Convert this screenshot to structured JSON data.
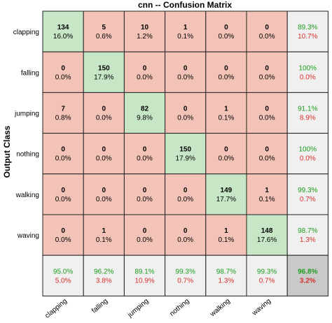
{
  "chart_data": {
    "type": "heatmap",
    "title": "cnn --  Confusion Matrix",
    "ylabel": "Output Class",
    "xlabel": "",
    "classes": [
      "clapping",
      "falling",
      "jumping",
      "nothing",
      "walking",
      "waving"
    ],
    "matrix": [
      [
        134,
        5,
        10,
        1,
        0,
        0
      ],
      [
        0,
        150,
        0,
        0,
        0,
        0
      ],
      [
        7,
        0,
        82,
        0,
        1,
        0
      ],
      [
        0,
        0,
        0,
        150,
        0,
        0
      ],
      [
        0,
        0,
        0,
        0,
        149,
        1
      ],
      [
        0,
        1,
        0,
        0,
        1,
        148
      ]
    ],
    "matrix_pct": [
      [
        "16.0%",
        "0.6%",
        "1.2%",
        "0.1%",
        "0.0%",
        "0.0%"
      ],
      [
        "0.0%",
        "17.9%",
        "0.0%",
        "0.0%",
        "0.0%",
        "0.0%"
      ],
      [
        "0.8%",
        "0.0%",
        "9.8%",
        "0.0%",
        "0.1%",
        "0.0%"
      ],
      [
        "0.0%",
        "0.0%",
        "0.0%",
        "17.9%",
        "0.0%",
        "0.0%"
      ],
      [
        "0.0%",
        "0.0%",
        "0.0%",
        "0.0%",
        "17.7%",
        "0.1%"
      ],
      [
        "0.0%",
        "0.1%",
        "0.0%",
        "0.0%",
        "0.1%",
        "17.6%"
      ]
    ],
    "row_summary": [
      {
        "correct": "89.3%",
        "error": "10.7%"
      },
      {
        "correct": "100%",
        "error": "0.0%"
      },
      {
        "correct": "91.1%",
        "error": "8.9%"
      },
      {
        "correct": "100%",
        "error": "0.0%"
      },
      {
        "correct": "99.3%",
        "error": "0.7%"
      },
      {
        "correct": "98.7%",
        "error": "1.3%"
      }
    ],
    "col_summary": [
      {
        "correct": "95.0%",
        "error": "5.0%"
      },
      {
        "correct": "96.2%",
        "error": "3.8%"
      },
      {
        "correct": "89.1%",
        "error": "10.9%"
      },
      {
        "correct": "99.3%",
        "error": "0.7%"
      },
      {
        "correct": "98.7%",
        "error": "1.3%"
      },
      {
        "correct": "99.3%",
        "error": "0.7%"
      }
    ],
    "overall": {
      "correct": "96.8%",
      "error": "3.2%"
    },
    "colors": {
      "diagonal": "#c6e6c6",
      "off_diagonal": "#f4c3b7",
      "summary": "#f0f0f0",
      "overall": "#c9c9c9",
      "correct_text": "#1c9e1c",
      "error_text": "#d9302c"
    }
  }
}
